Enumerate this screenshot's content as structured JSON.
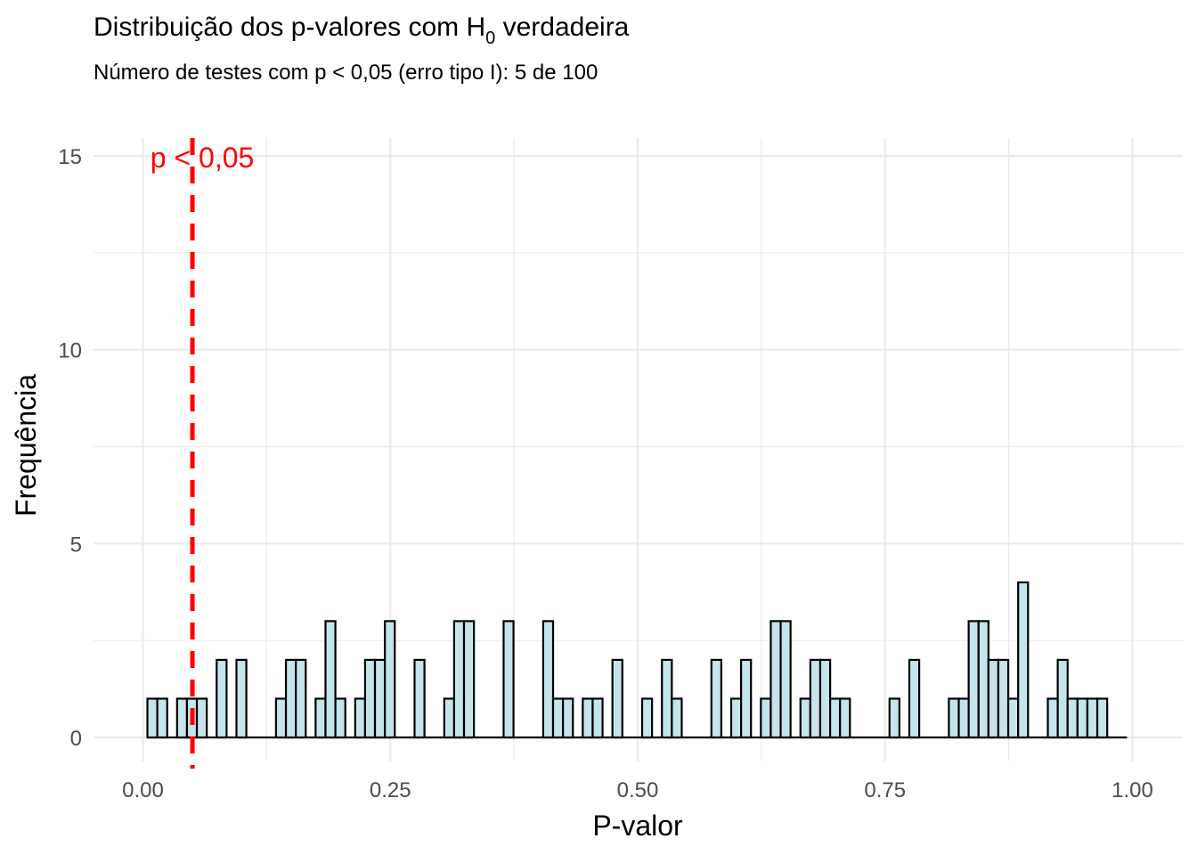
{
  "chart_data": {
    "type": "bar",
    "title_main": "Distribuição dos p-valores com H",
    "title_sub": "0",
    "title_tail": " verdadeira",
    "subtitle": "Número de testes com p < 0,05 (erro tipo I): 5 de 100",
    "xlabel": "P-valor",
    "ylabel": "Frequência",
    "xlim": [
      0,
      1
    ],
    "ylim": [
      0,
      15.5
    ],
    "x_ticks": [
      "0.00",
      "0.25",
      "0.50",
      "0.75",
      "1.00"
    ],
    "x_tick_values": [
      0,
      0.25,
      0.5,
      0.75,
      1.0
    ],
    "y_ticks": [
      "0",
      "5",
      "10",
      "15"
    ],
    "y_tick_values": [
      0,
      5,
      10,
      15
    ],
    "bin_start": 0.0045,
    "bin_width": 0.01,
    "values": [
      1,
      1,
      0,
      1,
      1,
      1,
      0,
      2,
      0,
      2,
      0,
      0,
      0,
      1,
      2,
      2,
      0,
      1,
      3,
      1,
      0,
      1,
      2,
      2,
      3,
      0,
      0,
      2,
      0,
      0,
      1,
      3,
      3,
      0,
      0,
      0,
      3,
      0,
      0,
      0,
      3,
      1,
      1,
      0,
      1,
      1,
      0,
      2,
      0,
      0,
      1,
      0,
      2,
      1,
      0,
      0,
      0,
      2,
      0,
      1,
      2,
      0,
      1,
      3,
      3,
      0,
      1,
      2,
      2,
      1,
      1,
      0,
      0,
      0,
      0,
      1,
      0,
      2,
      0,
      0,
      0,
      1,
      1,
      3,
      3,
      2,
      2,
      1,
      4,
      0,
      0,
      1,
      2,
      1,
      1,
      1,
      1,
      0,
      0
    ],
    "reference_line": {
      "x": 0.05,
      "label": "p < 0,05",
      "color": "#ff0000"
    },
    "bar_fill": "#c5e4ec",
    "bar_stroke": "#000000",
    "grid": true
  }
}
